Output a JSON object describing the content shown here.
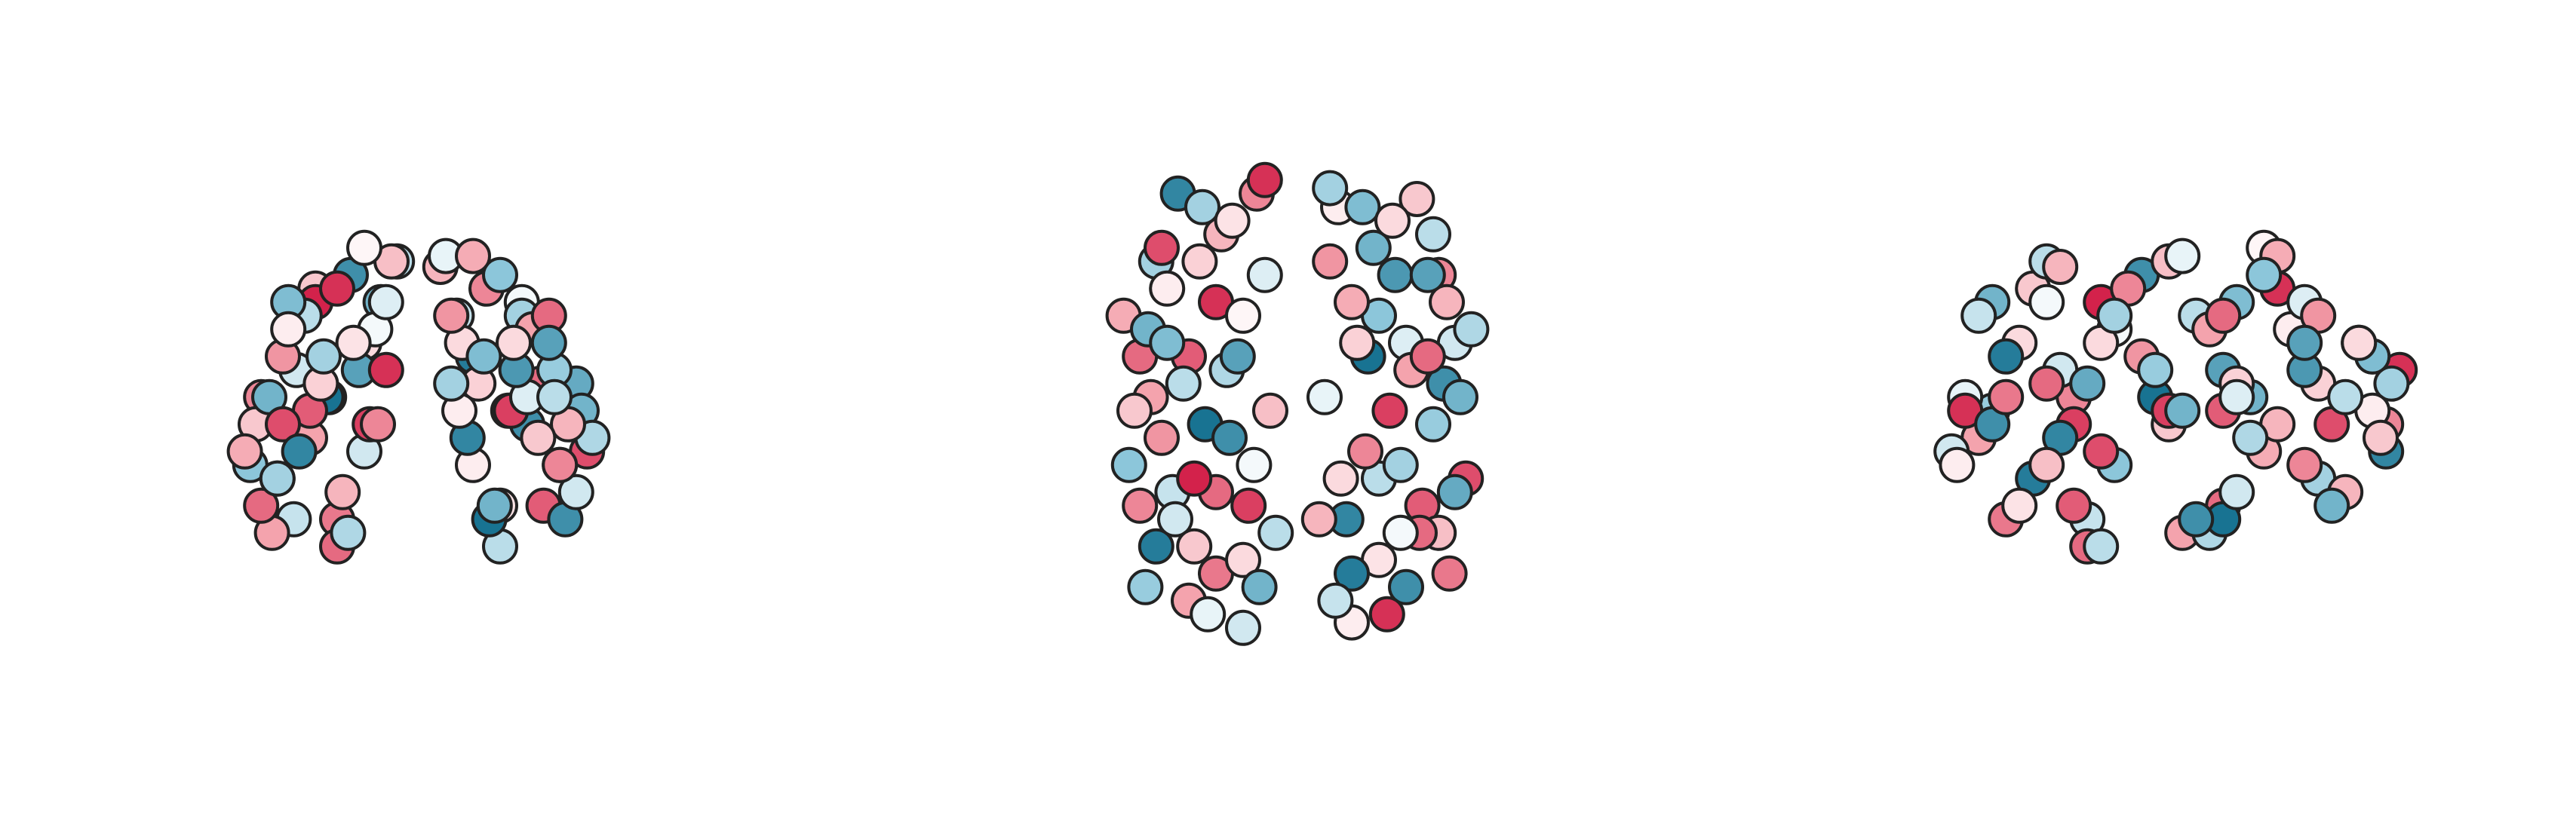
{
  "chart_data": {
    "type": "brain-nodes",
    "nodes": {
      "x": [
        -60,
        -55,
        -50,
        -45,
        -40,
        -35,
        -30,
        -25,
        -20,
        -15,
        -62,
        -58,
        -52,
        -48,
        -42,
        -38,
        -33,
        -28,
        -22,
        -18,
        -12,
        -10,
        -56,
        -50,
        -44,
        -36,
        -30,
        -26,
        -20,
        -14,
        -64,
        -46,
        -40,
        -34,
        -24,
        -16,
        -58,
        -52,
        -12,
        -8,
        -38,
        -48,
        -30,
        -20,
        -54,
        60,
        55,
        50,
        45,
        40,
        35,
        30,
        25,
        20,
        15,
        62,
        58,
        52,
        48,
        42,
        38,
        33,
        28,
        22,
        18,
        12,
        10,
        56,
        50,
        44,
        36,
        30,
        26,
        20,
        14,
        64,
        46,
        40,
        34,
        24,
        16,
        58,
        52,
        12,
        8,
        38,
        48,
        30,
        20,
        54
      ],
      "y": [
        -20,
        10,
        40,
        -60,
        -90,
        55,
        20,
        -30,
        -75,
        60,
        -40,
        0,
        -70,
        25,
        -10,
        -45,
        -95,
        45,
        0,
        -55,
        30,
        -20,
        -85,
        -30,
        60,
        35,
        -80,
        -5,
        15,
        -85,
        15,
        -50,
        0,
        -25,
        50,
        -40,
        -55,
        35,
        65,
        -65,
        -70,
        5,
        -50,
        -100,
        -15,
        -15,
        20,
        45,
        -65,
        -85,
        50,
        15,
        -35,
        -80,
        55,
        -45,
        5,
        -65,
        30,
        -5,
        -40,
        -95,
        40,
        5,
        -60,
        35,
        -15,
        -80,
        -25,
        58,
        30,
        -75,
        0,
        20,
        -90,
        10,
        -55,
        5,
        -20,
        55,
        -45,
        -50,
        30,
        62,
        -60,
        -65,
        0,
        -45,
        -98,
        -10
      ],
      "z": [
        10,
        20,
        10,
        30,
        5,
        35,
        60,
        65,
        40,
        10,
        -5,
        -20,
        -10,
        45,
        50,
        55,
        20,
        -15,
        30,
        10,
        55,
        70,
        15,
        35,
        0,
        25,
        -25,
        -30,
        75,
        55,
        0,
        -25,
        15,
        20,
        40,
        45,
        20,
        -10,
        30,
        70,
        60,
        55,
        -35,
        0,
        -30,
        15,
        10,
        20,
        25,
        10,
        40,
        65,
        60,
        35,
        15,
        0,
        -15,
        -5,
        40,
        45,
        50,
        15,
        -20,
        25,
        5,
        50,
        72,
        20,
        30,
        5,
        30,
        -20,
        -25,
        72,
        50,
        5,
        -20,
        20,
        15,
        35,
        40,
        25,
        -5,
        25,
        68,
        55,
        50,
        -35,
        -5,
        -25
      ],
      "values": [
        0.3,
        -0.6,
        0.8,
        -0.2,
        0.5,
        -0.4,
        0.9,
        -0.8,
        0.2,
        0.6,
        -0.5,
        0.7,
        -0.9,
        0.1,
        -0.3,
        0.95,
        -0.1,
        0.4,
        -0.7,
        0.85,
        -0.15,
        0.35,
        -0.45,
        0.55,
        -0.85,
        0.25,
        0.65,
        -0.35,
        0.05,
        -0.6,
        0.45,
        -0.25,
        0.75,
        -0.95,
        0.15,
        -0.05,
        0.6,
        -0.4,
        0.9,
        -0.3,
        0.3,
        -0.55,
        0.7,
        -0.2,
        0.5,
        -0.6,
        0.4,
        -0.3,
        0.7,
        -0.8,
        0.2,
        -0.5,
        0.6,
        -0.9,
        0.1,
        0.8,
        -0.2,
        0.35,
        -0.7,
        0.5,
        -0.4,
        0.9,
        -0.6,
        0.25,
        -0.85,
        0.55,
        -0.1,
        0.65,
        -0.45,
        0.3,
        -0.75,
        0.15,
        -0.95,
        0.45,
        -0.25,
        -0.35,
        0.75,
        -0.15,
        0.85,
        -0.55,
        0.2,
        -0.65,
        0.6,
        -0.4,
        0.4,
        -0.05,
        0.7,
        -0.3,
        0.1,
        -0.8
      ]
    },
    "views": [
      {
        "horizontal": "x",
        "vertical": "z",
        "depth": "y"
      },
      {
        "horizontal": "x",
        "vertical": "y",
        "depth": "z"
      },
      {
        "horizontal": "y",
        "vertical": "z",
        "depth": "x"
      }
    ],
    "clim": [
      -1,
      1
    ],
    "colors": [
      "#0b6a8a",
      "#8cc6da",
      "#ffffff",
      "#f4a3ad",
      "#cf1440"
    ]
  }
}
